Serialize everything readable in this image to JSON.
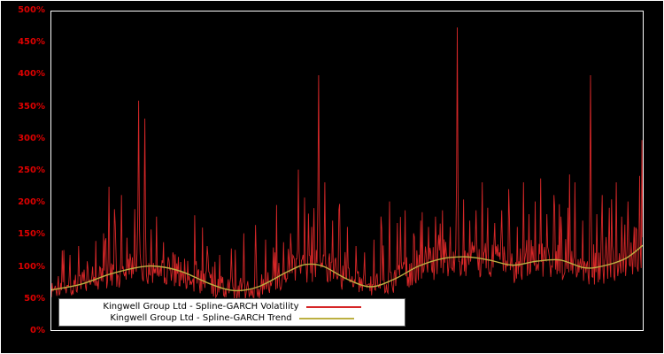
{
  "chart_data": {
    "type": "line",
    "title": "",
    "xlabel": "",
    "ylabel": "",
    "ylim": [
      0,
      500
    ],
    "y_ticks": [
      "0%",
      "50%",
      "100%",
      "150%",
      "200%",
      "250%",
      "300%",
      "350%",
      "400%",
      "450%",
      "500%"
    ],
    "x_tick_labels": [],
    "grid": false,
    "legend_position": "bottom-left-inside",
    "colors": {
      "background": "#000000",
      "plot_border": "#ffffff",
      "axis_label": "#dd0000",
      "legend_background": "#ffffff",
      "legend_border": "#555555",
      "legend_text": "#000000"
    },
    "series": [
      {
        "name": "Kingwell Group Ltd - Spline-GARCH Volatility",
        "color": "#d62728",
        "style": "noisy-line",
        "noise": {
          "seed": 1337,
          "points": 760,
          "band_low": 0.72,
          "band_span": 0.55,
          "medium_spike_prob": 0.1,
          "medium_spike_max_gain": 1.1,
          "min": 45,
          "max": 500
        },
        "major_spikes": [
          [
            0.018,
            125
          ],
          [
            0.032,
            118
          ],
          [
            0.046,
            132
          ],
          [
            0.06,
            108
          ],
          [
            0.075,
            140
          ],
          [
            0.088,
            152
          ],
          [
            0.097,
            225
          ],
          [
            0.108,
            165
          ],
          [
            0.118,
            212
          ],
          [
            0.128,
            145
          ],
          [
            0.141,
            190
          ],
          [
            0.148,
            360
          ],
          [
            0.158,
            332
          ],
          [
            0.168,
            158
          ],
          [
            0.178,
            178
          ],
          [
            0.19,
            138
          ],
          [
            0.205,
            122
          ],
          [
            0.225,
            112
          ],
          [
            0.245,
            108
          ],
          [
            0.263,
            132
          ],
          [
            0.285,
            118
          ],
          [
            0.305,
            128
          ],
          [
            0.325,
            152
          ],
          [
            0.345,
            165
          ],
          [
            0.362,
            142
          ],
          [
            0.378,
            122
          ],
          [
            0.392,
            138
          ],
          [
            0.405,
            152
          ],
          [
            0.418,
            252
          ],
          [
            0.428,
            208
          ],
          [
            0.44,
            162
          ],
          [
            0.452,
            400
          ],
          [
            0.463,
            232
          ],
          [
            0.475,
            172
          ],
          [
            0.487,
            198
          ],
          [
            0.5,
            162
          ],
          [
            0.515,
            132
          ],
          [
            0.53,
            122
          ],
          [
            0.545,
            142
          ],
          [
            0.558,
            158
          ],
          [
            0.572,
            202
          ],
          [
            0.585,
            168
          ],
          [
            0.598,
            188
          ],
          [
            0.612,
            152
          ],
          [
            0.625,
            172
          ],
          [
            0.638,
            162
          ],
          [
            0.65,
            178
          ],
          [
            0.662,
            188
          ],
          [
            0.674,
            162
          ],
          [
            0.686,
            475
          ],
          [
            0.697,
            205
          ],
          [
            0.708,
            172
          ],
          [
            0.718,
            188
          ],
          [
            0.728,
            232
          ],
          [
            0.738,
            192
          ],
          [
            0.75,
            168
          ],
          [
            0.762,
            188
          ],
          [
            0.775,
            172
          ],
          [
            0.788,
            162
          ],
          [
            0.798,
            232
          ],
          [
            0.808,
            182
          ],
          [
            0.818,
            202
          ],
          [
            0.828,
            238
          ],
          [
            0.838,
            182
          ],
          [
            0.85,
            212
          ],
          [
            0.862,
            178
          ],
          [
            0.874,
            192
          ],
          [
            0.886,
            232
          ],
          [
            0.898,
            172
          ],
          [
            0.912,
            400
          ],
          [
            0.922,
            182
          ],
          [
            0.932,
            212
          ],
          [
            0.944,
            192
          ],
          [
            0.955,
            232
          ],
          [
            0.965,
            178
          ],
          [
            0.975,
            202
          ],
          [
            0.985,
            162
          ],
          [
            0.995,
            242
          ]
        ]
      },
      {
        "name": "Kingwell Group Ltd - Spline-GARCH Trend",
        "color": "#bcb042",
        "style": "smooth-line",
        "keypoints": [
          [
            0.0,
            63
          ],
          [
            0.05,
            72
          ],
          [
            0.1,
            88
          ],
          [
            0.15,
            99
          ],
          [
            0.18,
            100
          ],
          [
            0.22,
            92
          ],
          [
            0.27,
            72
          ],
          [
            0.31,
            62
          ],
          [
            0.35,
            68
          ],
          [
            0.4,
            92
          ],
          [
            0.43,
            103
          ],
          [
            0.46,
            100
          ],
          [
            0.5,
            80
          ],
          [
            0.54,
            68
          ],
          [
            0.58,
            80
          ],
          [
            0.62,
            100
          ],
          [
            0.66,
            112
          ],
          [
            0.7,
            115
          ],
          [
            0.74,
            110
          ],
          [
            0.78,
            102
          ],
          [
            0.82,
            108
          ],
          [
            0.86,
            110
          ],
          [
            0.9,
            98
          ],
          [
            0.93,
            100
          ],
          [
            0.97,
            112
          ],
          [
            1.0,
            133
          ]
        ]
      }
    ]
  }
}
